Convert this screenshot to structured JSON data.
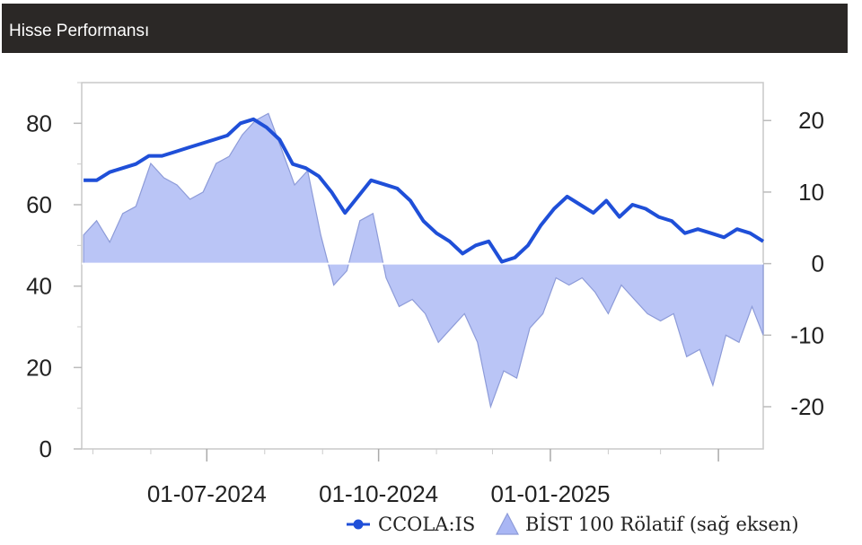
{
  "header": {
    "title": "Hisse Performansı"
  },
  "chart_data": {
    "type": "line",
    "title": "Hisse Performansı",
    "xlabel": "",
    "ylabel": "",
    "x_ticks": [
      "01-07-2024",
      "01-10-2024",
      "01-01-2025"
    ],
    "y_left": {
      "ticks": [
        0,
        20,
        40,
        60,
        80
      ],
      "lim": [
        0,
        90
      ]
    },
    "y_right": {
      "ticks": [
        -20,
        -10,
        0,
        10,
        20
      ],
      "lim": [
        -25.9,
        25.3
      ]
    },
    "x_range": [
      "2024-04-25",
      "2025-04-25"
    ],
    "legend_position": "bottom-right",
    "grid": false,
    "series": [
      {
        "name": "CCOLA:IS",
        "type": "line",
        "axis": "left",
        "color": "#1f4fd8",
        "points": [
          [
            "2024-04-26",
            66
          ],
          [
            "2024-05-03",
            66
          ],
          [
            "2024-05-10",
            68
          ],
          [
            "2024-05-17",
            69
          ],
          [
            "2024-05-24",
            70
          ],
          [
            "2024-05-31",
            72
          ],
          [
            "2024-06-07",
            72
          ],
          [
            "2024-06-14",
            73
          ],
          [
            "2024-06-21",
            74
          ],
          [
            "2024-06-28",
            75
          ],
          [
            "2024-07-05",
            76
          ],
          [
            "2024-07-12",
            77
          ],
          [
            "2024-07-19",
            80
          ],
          [
            "2024-07-26",
            81
          ],
          [
            "2024-08-02",
            79
          ],
          [
            "2024-08-09",
            76
          ],
          [
            "2024-08-16",
            70
          ],
          [
            "2024-08-23",
            69
          ],
          [
            "2024-08-30",
            67
          ],
          [
            "2024-09-06",
            63
          ],
          [
            "2024-09-13",
            58
          ],
          [
            "2024-09-20",
            62
          ],
          [
            "2024-09-27",
            66
          ],
          [
            "2024-10-04",
            65
          ],
          [
            "2024-10-11",
            64
          ],
          [
            "2024-10-18",
            61
          ],
          [
            "2024-10-25",
            56
          ],
          [
            "2024-11-01",
            53
          ],
          [
            "2024-11-08",
            51
          ],
          [
            "2024-11-15",
            48
          ],
          [
            "2024-11-22",
            50
          ],
          [
            "2024-11-29",
            51
          ],
          [
            "2024-12-06",
            46
          ],
          [
            "2024-12-13",
            47
          ],
          [
            "2024-12-20",
            50
          ],
          [
            "2024-12-27",
            55
          ],
          [
            "2025-01-03",
            59
          ],
          [
            "2025-01-10",
            62
          ],
          [
            "2025-01-17",
            60
          ],
          [
            "2025-01-24",
            58
          ],
          [
            "2025-01-31",
            61
          ],
          [
            "2025-02-07",
            57
          ],
          [
            "2025-02-14",
            60
          ],
          [
            "2025-02-21",
            59
          ],
          [
            "2025-02-28",
            57
          ],
          [
            "2025-03-07",
            56
          ],
          [
            "2025-03-14",
            53
          ],
          [
            "2025-03-21",
            54
          ],
          [
            "2025-03-28",
            53
          ],
          [
            "2025-04-04",
            52
          ],
          [
            "2025-04-11",
            54
          ],
          [
            "2025-04-18",
            53
          ],
          [
            "2025-04-25",
            51
          ]
        ]
      },
      {
        "name": "BİST 100 Rölatif (sağ eksen)",
        "type": "area",
        "axis": "right",
        "color": "#a9b6f4",
        "points": [
          [
            "2024-04-26",
            4
          ],
          [
            "2024-05-03",
            6
          ],
          [
            "2024-05-10",
            3
          ],
          [
            "2024-05-17",
            7
          ],
          [
            "2024-05-24",
            8
          ],
          [
            "2024-06-01",
            14
          ],
          [
            "2024-06-08",
            12
          ],
          [
            "2024-06-15",
            11
          ],
          [
            "2024-06-22",
            9
          ],
          [
            "2024-06-29",
            10
          ],
          [
            "2024-07-06",
            14
          ],
          [
            "2024-07-13",
            15
          ],
          [
            "2024-07-20",
            18
          ],
          [
            "2024-07-27",
            20
          ],
          [
            "2024-08-03",
            21
          ],
          [
            "2024-08-10",
            16
          ],
          [
            "2024-08-17",
            11
          ],
          [
            "2024-08-24",
            13
          ],
          [
            "2024-08-31",
            4
          ],
          [
            "2024-09-07",
            -3
          ],
          [
            "2024-09-14",
            -1
          ],
          [
            "2024-09-21",
            6
          ],
          [
            "2024-09-28",
            7
          ],
          [
            "2024-10-05",
            -2
          ],
          [
            "2024-10-12",
            -6
          ],
          [
            "2024-10-19",
            -5
          ],
          [
            "2024-10-26",
            -7
          ],
          [
            "2024-11-02",
            -11
          ],
          [
            "2024-11-09",
            -9
          ],
          [
            "2024-11-16",
            -7
          ],
          [
            "2024-11-23",
            -11
          ],
          [
            "2024-11-30",
            -20
          ],
          [
            "2024-12-07",
            -15
          ],
          [
            "2024-12-14",
            -16
          ],
          [
            "2024-12-21",
            -9
          ],
          [
            "2024-12-28",
            -7
          ],
          [
            "2025-01-04",
            -2
          ],
          [
            "2025-01-11",
            -3
          ],
          [
            "2025-01-18",
            -2
          ],
          [
            "2025-01-25",
            -4
          ],
          [
            "2025-02-01",
            -7
          ],
          [
            "2025-02-08",
            -3
          ],
          [
            "2025-02-15",
            -5
          ],
          [
            "2025-02-22",
            -7
          ],
          [
            "2025-03-01",
            -8
          ],
          [
            "2025-03-08",
            -7
          ],
          [
            "2025-03-15",
            -13
          ],
          [
            "2025-03-22",
            -12
          ],
          [
            "2025-03-29",
            -17
          ],
          [
            "2025-04-05",
            -10
          ],
          [
            "2025-04-12",
            -11
          ],
          [
            "2025-04-19",
            -6
          ],
          [
            "2025-04-25",
            -10
          ]
        ]
      }
    ]
  }
}
